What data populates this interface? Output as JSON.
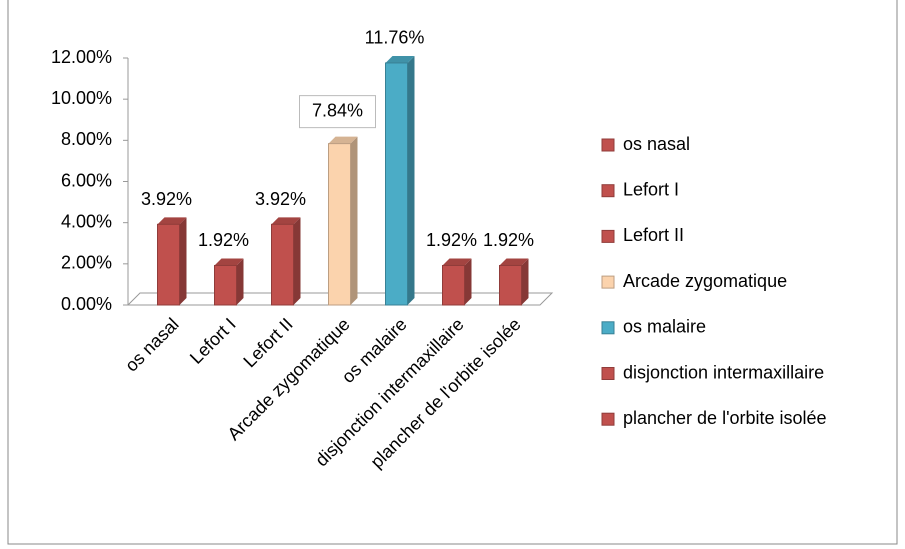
{
  "chart_data": {
    "type": "bar",
    "categories": [
      "os nasal",
      "Lefort I",
      "Lefort II",
      "Arcade zygomatique",
      "os malaire",
      "disjonction intermaxillaire",
      "plancher de l'orbite isolée"
    ],
    "values": [
      3.92,
      1.92,
      3.92,
      7.84,
      11.76,
      1.92,
      1.92
    ],
    "value_labels": [
      "3.92%",
      "1.92%",
      "3.92%",
      "7.84%",
      "11.76%",
      "1.92%",
      "1.92%"
    ],
    "colors": [
      "#c0504d",
      "#c0504d",
      "#c0504d",
      "#fbd3ad",
      "#4bacc6",
      "#c0504d",
      "#c0504d"
    ],
    "ylim": [
      0,
      12
    ],
    "yticks": [
      {
        "value": 0,
        "label": "0.00%"
      },
      {
        "value": 2,
        "label": "2.00%"
      },
      {
        "value": 4,
        "label": "4.00%"
      },
      {
        "value": 6,
        "label": "6.00%"
      },
      {
        "value": 8,
        "label": "8.00%"
      },
      {
        "value": 10,
        "label": "10.00%"
      },
      {
        "value": 12,
        "label": "12.00%"
      }
    ],
    "grid": false,
    "legend": "right"
  }
}
